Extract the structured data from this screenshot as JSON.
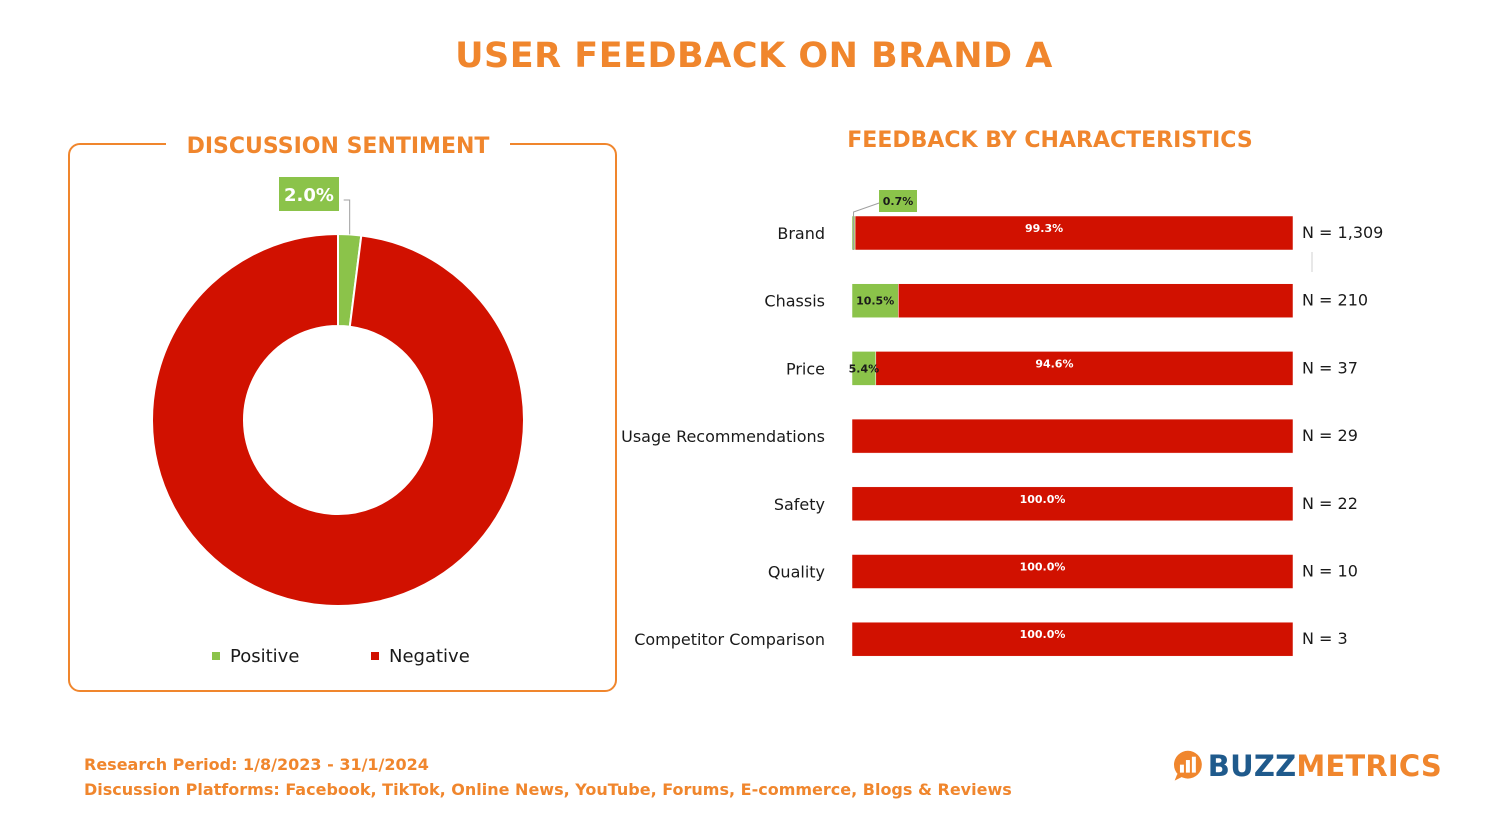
{
  "title": "USER FEEDBACK ON BRAND A",
  "colors": {
    "accent": "#f0862d",
    "positive": "#8bc34a",
    "negative": "#d11100"
  },
  "footer": {
    "period": "Research Period: 1/8/2023 - 31/1/2024",
    "platforms": "Discussion Platforms: Facebook, TikTok, Online News, YouTube, Forums, E-commerce, Blogs & Reviews"
  },
  "logo": {
    "part1": "BUZZ",
    "part2": "METRICS",
    "icon": "bar-chart-speech-bubble-icon"
  },
  "chart_data": [
    {
      "type": "pie",
      "title": "DISCUSSION SENTIMENT",
      "donut": true,
      "legend": "bottom",
      "labels": [
        "Positive",
        "Negative"
      ],
      "values": [
        2.0,
        98.0
      ],
      "data_labels": [
        "2.0%",
        ""
      ]
    },
    {
      "type": "bar",
      "title": "FEEDBACK BY CHARACTERISTICS",
      "orientation": "horizontal",
      "stacked": true,
      "categories": [
        "Brand",
        "Chassis",
        "Price",
        "Usage Recommendations",
        "Safety",
        "Quality",
        "Competitor Comparison"
      ],
      "series": [
        {
          "name": "Positive",
          "values": [
            0.7,
            10.5,
            5.4,
            0,
            0,
            0,
            0
          ],
          "data_labels": [
            "0.7%",
            "10.5%",
            "5.4%",
            "",
            "",
            "",
            ""
          ]
        },
        {
          "name": "Negative",
          "values": [
            99.3,
            89.5,
            94.6,
            100,
            100,
            100,
            100
          ],
          "data_labels": [
            "99.3%",
            "",
            "94.6%",
            "",
            "100.0%",
            "100.0%",
            "100.0%"
          ]
        }
      ],
      "counts": [
        "N = 1,309",
        "N = 210",
        "N = 37",
        "N = 29",
        "N = 22",
        "N = 10",
        "N = 3"
      ],
      "xlim": [
        0,
        100
      ]
    }
  ]
}
